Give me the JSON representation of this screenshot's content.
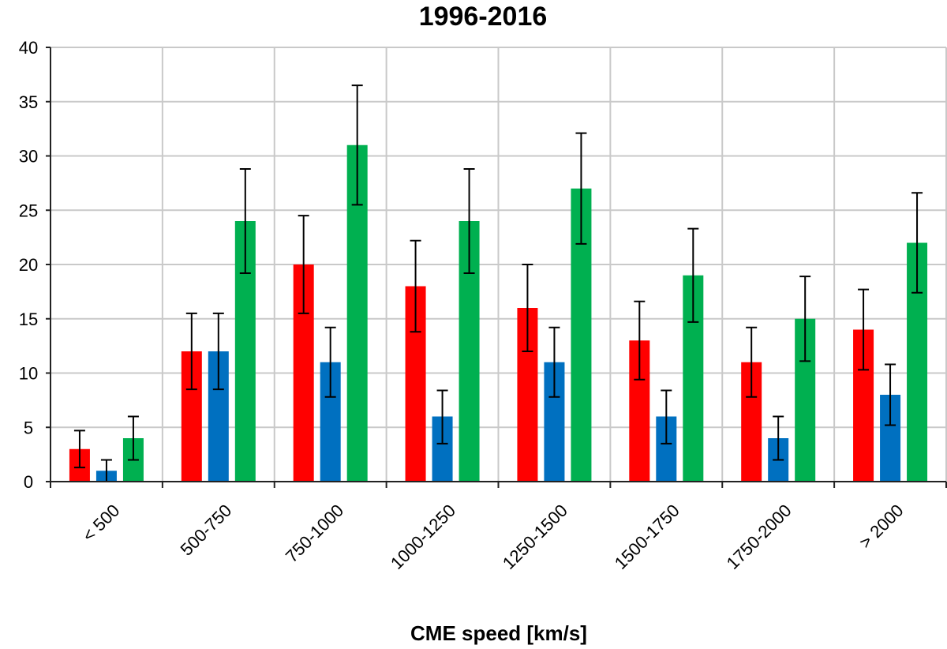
{
  "chart_data": {
    "type": "bar",
    "title": "1996-2016",
    "xlabel": "CME speed [km/s]",
    "ylabel": "",
    "ylim": [
      0,
      40
    ],
    "yticks": [
      0,
      5,
      10,
      15,
      20,
      25,
      30,
      35,
      40
    ],
    "grid": true,
    "legend": "none",
    "categories": [
      "< 500",
      "500-750",
      "750-1000",
      "1000-1250",
      "1250-1500",
      "1500-1750",
      "1750-2000",
      "> 2000"
    ],
    "series": [
      {
        "color": "#ff0000",
        "values": [
          3,
          12,
          20,
          18,
          16,
          13,
          11,
          14
        ],
        "err_low": [
          1.3,
          8.5,
          15.5,
          13.8,
          12.0,
          9.4,
          7.8,
          10.3
        ],
        "err_high": [
          4.7,
          15.5,
          24.5,
          22.2,
          20.0,
          16.6,
          14.2,
          17.7
        ]
      },
      {
        "color": "#0070c0",
        "values": [
          1,
          12,
          11,
          6,
          11,
          6,
          4,
          8
        ],
        "err_low": [
          0,
          8.5,
          7.8,
          3.5,
          7.8,
          3.5,
          2.0,
          5.2
        ],
        "err_high": [
          2.0,
          15.5,
          14.2,
          8.4,
          14.2,
          8.4,
          6.0,
          10.8
        ]
      },
      {
        "color": "#00b050",
        "values": [
          4,
          24,
          31,
          24,
          27,
          19,
          15,
          22
        ],
        "err_low": [
          2.0,
          19.2,
          25.5,
          19.2,
          21.9,
          14.7,
          11.1,
          17.4
        ],
        "err_high": [
          6.0,
          28.8,
          36.5,
          28.8,
          32.1,
          23.3,
          18.9,
          26.6
        ]
      }
    ]
  }
}
